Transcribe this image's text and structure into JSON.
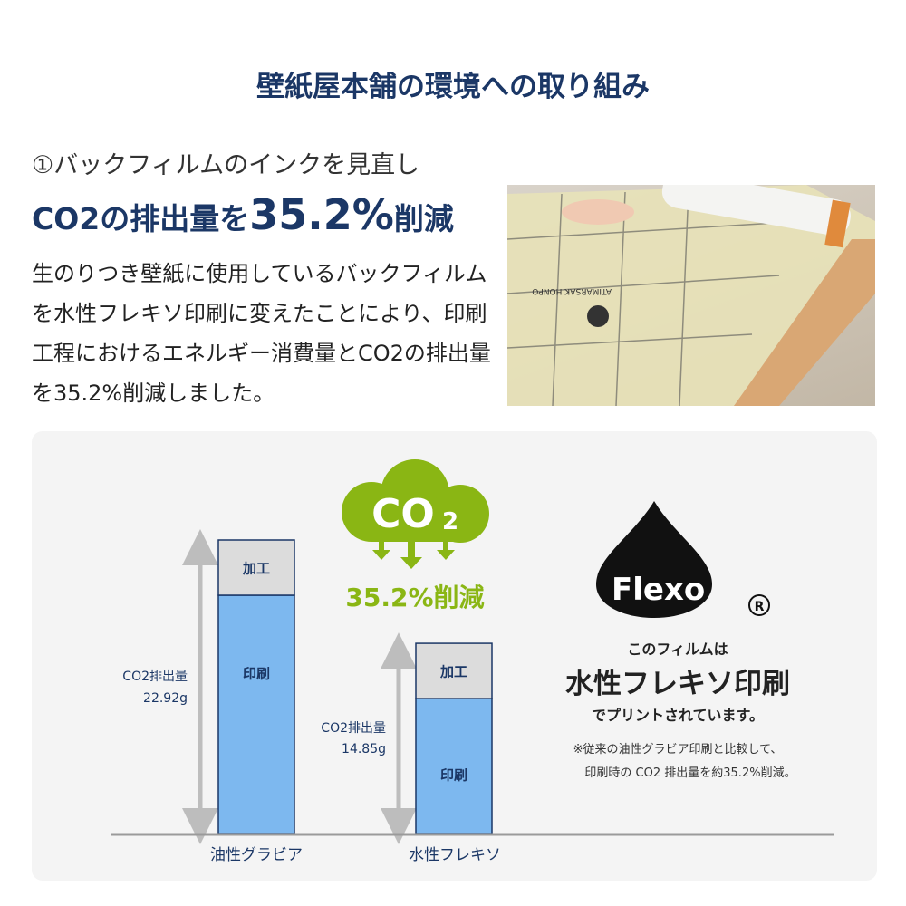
{
  "title": "壁紙屋本舗の環境への取り組み",
  "section": {
    "subtitle": "①バックフィルムのインクを見直し",
    "headline_pre": "CO2の排出量を",
    "headline_value": "35.2%",
    "headline_post": "削減",
    "body": "生のりつき壁紙に使用しているバックフィルムを水性フレキソ印刷に変えたことにより、印刷工程におけるエネルギー消費量とCO2の排出量を35.2%削減しました。"
  },
  "photo": {
    "label": "ATIMARSAK HONPO"
  },
  "cloud": {
    "label": "CO",
    "subscript": "2",
    "reduction": "35.2%削減"
  },
  "flexo": {
    "logo": "Flexo",
    "registered": "®",
    "line1": "このフィルムは",
    "line2": "水性フレキソ印刷",
    "line3": "でプリントされています。",
    "note1": "※従来の油性グラビア印刷と比較して、",
    "note2": "印刷時の CO2 排出量を約35.2%削減。"
  },
  "colors": {
    "navy": "#1b3766",
    "bar_print": "#7db8ef",
    "bar_process": "#dcdcdc",
    "green": "#8ab614",
    "arrow": "#bdbdbd"
  },
  "chart_data": {
    "type": "bar",
    "stacked": true,
    "categories": [
      "油性グラビア",
      "水性フレキソ"
    ],
    "segment_labels": [
      "印刷",
      "加工"
    ],
    "values": [
      22.92,
      14.85
    ],
    "value_labels": [
      {
        "name": "CO2排出量",
        "value": "22.92g"
      },
      {
        "name": "CO2排出量",
        "value": "14.85g"
      }
    ],
    "unit": "g"
  }
}
